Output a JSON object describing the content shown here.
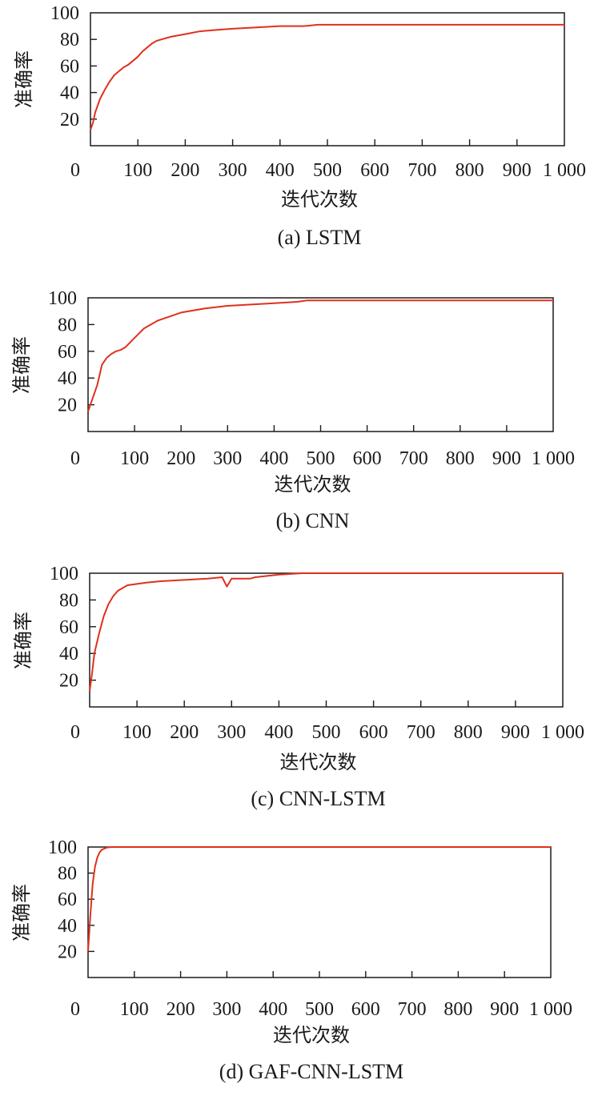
{
  "chart_data": [
    {
      "type": "line",
      "caption": "(a) LSTM",
      "xlabel": "迭代次数",
      "ylabel": "准确率",
      "xlim": [
        0,
        1000
      ],
      "ylim": [
        0,
        100
      ],
      "xticks": [
        "0",
        "100",
        "200",
        "300",
        "400",
        "500",
        "600",
        "700",
        "800",
        "900",
        "1 000"
      ],
      "yticks": [
        "20",
        "40",
        "60",
        "80",
        "100"
      ],
      "grid": false,
      "series": [
        {
          "color": "#e0301e",
          "x": [
            0,
            5,
            10,
            20,
            30,
            40,
            50,
            60,
            70,
            80,
            90,
            100,
            110,
            120,
            130,
            140,
            150,
            170,
            200,
            230,
            260,
            300,
            350,
            400,
            450,
            480,
            500,
            550,
            1000
          ],
          "y": [
            12,
            17,
            25,
            35,
            42,
            48,
            53,
            56,
            59,
            61,
            64,
            67,
            71,
            74,
            77,
            79,
            80,
            82,
            84,
            86,
            87,
            88,
            89,
            90,
            90,
            91,
            91,
            91,
            91
          ]
        }
      ]
    },
    {
      "type": "line",
      "caption": "(b) CNN",
      "xlabel": "迭代次数",
      "ylabel": "准确率",
      "xlim": [
        0,
        1000
      ],
      "ylim": [
        0,
        100
      ],
      "xticks": [
        "0",
        "100",
        "200",
        "300",
        "400",
        "500",
        "600",
        "700",
        "800",
        "900",
        "1 000"
      ],
      "yticks": [
        "20",
        "40",
        "60",
        "80",
        "100"
      ],
      "grid": false,
      "series": [
        {
          "color": "#e0301e",
          "x": [
            0,
            10,
            20,
            30,
            40,
            50,
            60,
            70,
            80,
            100,
            120,
            150,
            200,
            250,
            300,
            350,
            400,
            450,
            470,
            500,
            1000
          ],
          "y": [
            15,
            25,
            35,
            50,
            55,
            58,
            60,
            61,
            63,
            70,
            77,
            83,
            89,
            92,
            94,
            95,
            96,
            97,
            98,
            98,
            98
          ]
        }
      ]
    },
    {
      "type": "line",
      "caption": "(c) CNN-LSTM",
      "xlabel": "迭代次数",
      "ylabel": "准确率",
      "xlim": [
        0,
        1000
      ],
      "ylim": [
        0,
        100
      ],
      "xticks": [
        "0",
        "100",
        "200",
        "300",
        "400",
        "500",
        "600",
        "700",
        "800",
        "900",
        "1 000"
      ],
      "yticks": [
        "20",
        "40",
        "60",
        "80",
        "100"
      ],
      "grid": false,
      "series": [
        {
          "color": "#e0301e",
          "x": [
            0,
            5,
            10,
            20,
            30,
            40,
            50,
            60,
            70,
            80,
            100,
            120,
            150,
            200,
            250,
            280,
            290,
            300,
            340,
            350,
            400,
            450,
            500,
            1000
          ],
          "y": [
            12,
            25,
            40,
            55,
            68,
            77,
            83,
            87,
            89,
            91,
            92,
            93,
            94,
            95,
            96,
            97,
            90,
            96,
            96,
            97,
            99,
            100,
            100,
            100
          ]
        }
      ]
    },
    {
      "type": "line",
      "caption": "(d) GAF-CNN-LSTM",
      "xlabel": "迭代次数",
      "ylabel": "准确率",
      "xlim": [
        0,
        1000
      ],
      "ylim": [
        0,
        100
      ],
      "xticks": [
        "0",
        "100",
        "200",
        "300",
        "400",
        "500",
        "600",
        "700",
        "800",
        "900",
        "1 000"
      ],
      "yticks": [
        "20",
        "40",
        "60",
        "80",
        "100"
      ],
      "grid": false,
      "series": [
        {
          "color": "#e0301e",
          "x": [
            0,
            5,
            10,
            15,
            20,
            25,
            30,
            40,
            50,
            1000
          ],
          "y": [
            20,
            48,
            72,
            85,
            92,
            96,
            98,
            99.5,
            100,
            100
          ]
        }
      ]
    }
  ]
}
